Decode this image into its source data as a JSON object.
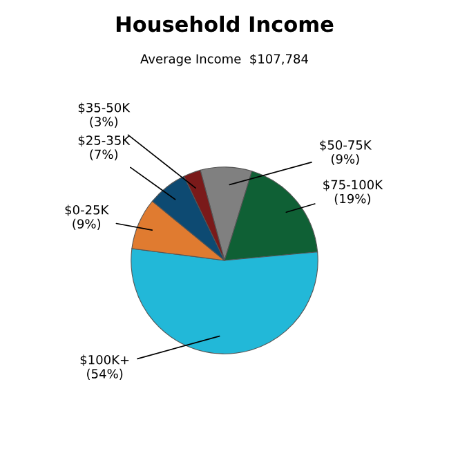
{
  "chart_data": {
    "type": "pie",
    "title": "Household Income",
    "subtitle": "Average Income  $107,784",
    "categories": [
      "$50-75K",
      "$75-100K",
      "$100K+",
      "$0-25K",
      "$25-35K",
      "$35-50K"
    ],
    "values": [
      9,
      19,
      54,
      9,
      7,
      3
    ],
    "value_labels": [
      "(9%)",
      "(19%)",
      "(54%)",
      "(9%)",
      "(7%)",
      "(3%)"
    ],
    "colors": [
      "#808080",
      "#0f6035",
      "#22b8d8",
      "#e07b30",
      "#0d4a72",
      "#7a1a1a"
    ]
  }
}
